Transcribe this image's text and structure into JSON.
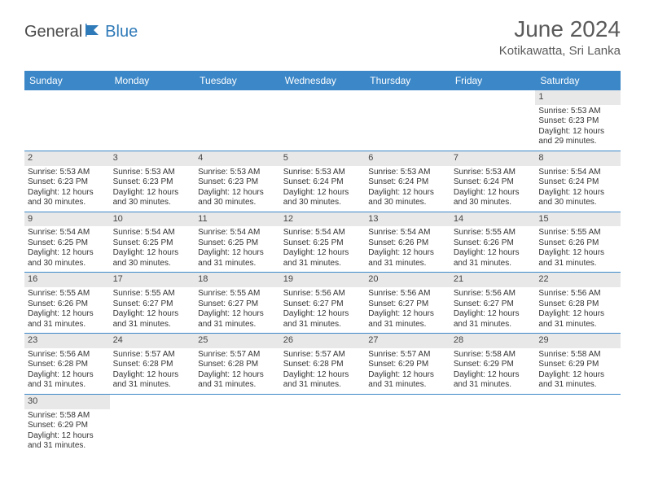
{
  "brand": {
    "part1": "General",
    "part2": "Blue"
  },
  "title": "June 2024",
  "location": "Kotikawatta, Sri Lanka",
  "colors": {
    "header_bg": "#3b87c8",
    "header_text": "#ffffff",
    "daynum_bg": "#e8e8e8",
    "text": "#333333",
    "border": "#3b87c8",
    "brand_blue": "#2f7ab8"
  },
  "weekdays": [
    "Sunday",
    "Monday",
    "Tuesday",
    "Wednesday",
    "Thursday",
    "Friday",
    "Saturday"
  ],
  "weeks": [
    [
      {
        "n": "",
        "empty": true
      },
      {
        "n": "",
        "empty": true
      },
      {
        "n": "",
        "empty": true
      },
      {
        "n": "",
        "empty": true
      },
      {
        "n": "",
        "empty": true
      },
      {
        "n": "",
        "empty": true
      },
      {
        "n": "1",
        "sr": "Sunrise: 5:53 AM",
        "ss": "Sunset: 6:23 PM",
        "d1": "Daylight: 12 hours",
        "d2": "and 29 minutes."
      }
    ],
    [
      {
        "n": "2",
        "sr": "Sunrise: 5:53 AM",
        "ss": "Sunset: 6:23 PM",
        "d1": "Daylight: 12 hours",
        "d2": "and 30 minutes."
      },
      {
        "n": "3",
        "sr": "Sunrise: 5:53 AM",
        "ss": "Sunset: 6:23 PM",
        "d1": "Daylight: 12 hours",
        "d2": "and 30 minutes."
      },
      {
        "n": "4",
        "sr": "Sunrise: 5:53 AM",
        "ss": "Sunset: 6:23 PM",
        "d1": "Daylight: 12 hours",
        "d2": "and 30 minutes."
      },
      {
        "n": "5",
        "sr": "Sunrise: 5:53 AM",
        "ss": "Sunset: 6:24 PM",
        "d1": "Daylight: 12 hours",
        "d2": "and 30 minutes."
      },
      {
        "n": "6",
        "sr": "Sunrise: 5:53 AM",
        "ss": "Sunset: 6:24 PM",
        "d1": "Daylight: 12 hours",
        "d2": "and 30 minutes."
      },
      {
        "n": "7",
        "sr": "Sunrise: 5:53 AM",
        "ss": "Sunset: 6:24 PM",
        "d1": "Daylight: 12 hours",
        "d2": "and 30 minutes."
      },
      {
        "n": "8",
        "sr": "Sunrise: 5:54 AM",
        "ss": "Sunset: 6:24 PM",
        "d1": "Daylight: 12 hours",
        "d2": "and 30 minutes."
      }
    ],
    [
      {
        "n": "9",
        "sr": "Sunrise: 5:54 AM",
        "ss": "Sunset: 6:25 PM",
        "d1": "Daylight: 12 hours",
        "d2": "and 30 minutes."
      },
      {
        "n": "10",
        "sr": "Sunrise: 5:54 AM",
        "ss": "Sunset: 6:25 PM",
        "d1": "Daylight: 12 hours",
        "d2": "and 30 minutes."
      },
      {
        "n": "11",
        "sr": "Sunrise: 5:54 AM",
        "ss": "Sunset: 6:25 PM",
        "d1": "Daylight: 12 hours",
        "d2": "and 31 minutes."
      },
      {
        "n": "12",
        "sr": "Sunrise: 5:54 AM",
        "ss": "Sunset: 6:25 PM",
        "d1": "Daylight: 12 hours",
        "d2": "and 31 minutes."
      },
      {
        "n": "13",
        "sr": "Sunrise: 5:54 AM",
        "ss": "Sunset: 6:26 PM",
        "d1": "Daylight: 12 hours",
        "d2": "and 31 minutes."
      },
      {
        "n": "14",
        "sr": "Sunrise: 5:55 AM",
        "ss": "Sunset: 6:26 PM",
        "d1": "Daylight: 12 hours",
        "d2": "and 31 minutes."
      },
      {
        "n": "15",
        "sr": "Sunrise: 5:55 AM",
        "ss": "Sunset: 6:26 PM",
        "d1": "Daylight: 12 hours",
        "d2": "and 31 minutes."
      }
    ],
    [
      {
        "n": "16",
        "sr": "Sunrise: 5:55 AM",
        "ss": "Sunset: 6:26 PM",
        "d1": "Daylight: 12 hours",
        "d2": "and 31 minutes."
      },
      {
        "n": "17",
        "sr": "Sunrise: 5:55 AM",
        "ss": "Sunset: 6:27 PM",
        "d1": "Daylight: 12 hours",
        "d2": "and 31 minutes."
      },
      {
        "n": "18",
        "sr": "Sunrise: 5:55 AM",
        "ss": "Sunset: 6:27 PM",
        "d1": "Daylight: 12 hours",
        "d2": "and 31 minutes."
      },
      {
        "n": "19",
        "sr": "Sunrise: 5:56 AM",
        "ss": "Sunset: 6:27 PM",
        "d1": "Daylight: 12 hours",
        "d2": "and 31 minutes."
      },
      {
        "n": "20",
        "sr": "Sunrise: 5:56 AM",
        "ss": "Sunset: 6:27 PM",
        "d1": "Daylight: 12 hours",
        "d2": "and 31 minutes."
      },
      {
        "n": "21",
        "sr": "Sunrise: 5:56 AM",
        "ss": "Sunset: 6:27 PM",
        "d1": "Daylight: 12 hours",
        "d2": "and 31 minutes."
      },
      {
        "n": "22",
        "sr": "Sunrise: 5:56 AM",
        "ss": "Sunset: 6:28 PM",
        "d1": "Daylight: 12 hours",
        "d2": "and 31 minutes."
      }
    ],
    [
      {
        "n": "23",
        "sr": "Sunrise: 5:56 AM",
        "ss": "Sunset: 6:28 PM",
        "d1": "Daylight: 12 hours",
        "d2": "and 31 minutes."
      },
      {
        "n": "24",
        "sr": "Sunrise: 5:57 AM",
        "ss": "Sunset: 6:28 PM",
        "d1": "Daylight: 12 hours",
        "d2": "and 31 minutes."
      },
      {
        "n": "25",
        "sr": "Sunrise: 5:57 AM",
        "ss": "Sunset: 6:28 PM",
        "d1": "Daylight: 12 hours",
        "d2": "and 31 minutes."
      },
      {
        "n": "26",
        "sr": "Sunrise: 5:57 AM",
        "ss": "Sunset: 6:28 PM",
        "d1": "Daylight: 12 hours",
        "d2": "and 31 minutes."
      },
      {
        "n": "27",
        "sr": "Sunrise: 5:57 AM",
        "ss": "Sunset: 6:29 PM",
        "d1": "Daylight: 12 hours",
        "d2": "and 31 minutes."
      },
      {
        "n": "28",
        "sr": "Sunrise: 5:58 AM",
        "ss": "Sunset: 6:29 PM",
        "d1": "Daylight: 12 hours",
        "d2": "and 31 minutes."
      },
      {
        "n": "29",
        "sr": "Sunrise: 5:58 AM",
        "ss": "Sunset: 6:29 PM",
        "d1": "Daylight: 12 hours",
        "d2": "and 31 minutes."
      }
    ],
    [
      {
        "n": "30",
        "sr": "Sunrise: 5:58 AM",
        "ss": "Sunset: 6:29 PM",
        "d1": "Daylight: 12 hours",
        "d2": "and 31 minutes."
      },
      {
        "n": "",
        "empty": true
      },
      {
        "n": "",
        "empty": true
      },
      {
        "n": "",
        "empty": true
      },
      {
        "n": "",
        "empty": true
      },
      {
        "n": "",
        "empty": true
      },
      {
        "n": "",
        "empty": true
      }
    ]
  ]
}
